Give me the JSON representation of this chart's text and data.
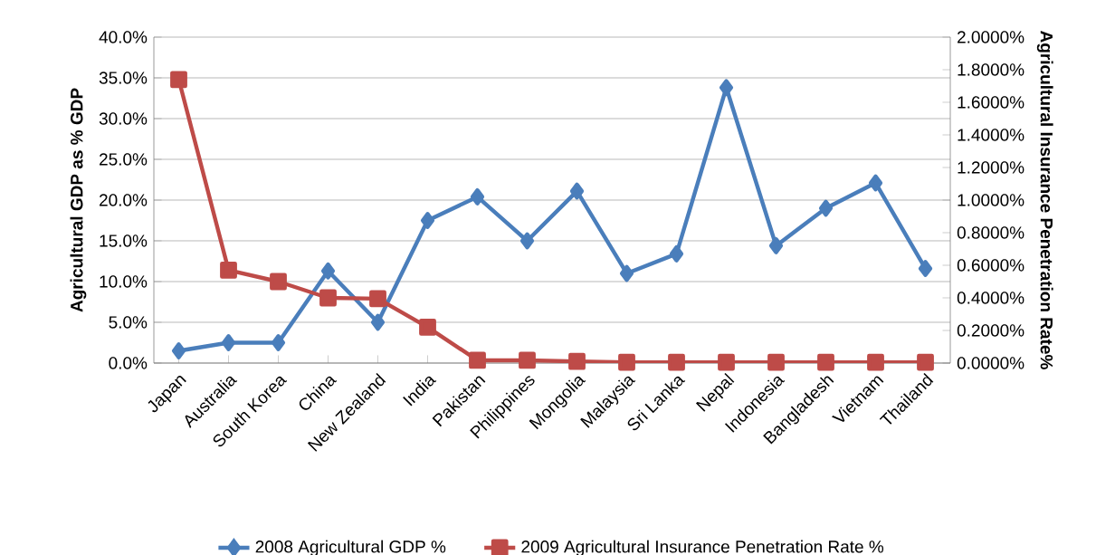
{
  "chart_data": {
    "type": "line",
    "categories": [
      "Japan",
      "Australia",
      "South Korea",
      "China",
      "New Zealand",
      "India",
      "Pakistan",
      "Philippines",
      "Mongolia",
      "Malaysia",
      "Sri Lanka",
      "Nepal",
      "Indonesia",
      "Bangladesh",
      "Vietnam",
      "Thailand"
    ],
    "series": [
      {
        "name": "2008 Agricultural GDP %",
        "color": "#4a7ebb",
        "marker": "diamond",
        "values": [
          1.5,
          2.5,
          2.5,
          11.3,
          5.0,
          17.5,
          20.4,
          15.0,
          21.1,
          11.0,
          13.4,
          33.8,
          14.4,
          19.0,
          22.1,
          11.6
        ]
      },
      {
        "name": "2009 Agricultural Insurance Penetration Rate %",
        "color": "#be4b48",
        "marker": "square",
        "axis": "y2",
        "values": [
          1.74,
          0.57,
          0.5,
          0.4,
          0.395,
          0.22,
          0.017,
          0.017,
          0.01,
          0.005,
          0.005,
          0.005,
          0.005,
          0.005,
          0.005,
          0.005
        ]
      }
    ],
    "ylabel": "Agricultural GDP as % GDP",
    "y2label": "Agricultural Insurance Penetration Rate%",
    "ylim": [
      0,
      40
    ],
    "yticks": [
      {
        "value": 0,
        "label": "0.0%"
      },
      {
        "value": 5,
        "label": "5.0%"
      },
      {
        "value": 10,
        "label": "10.0%"
      },
      {
        "value": 15,
        "label": "15.0%"
      },
      {
        "value": 20,
        "label": "20.0%"
      },
      {
        "value": 25,
        "label": "25.0%"
      },
      {
        "value": 30,
        "label": "30.0%"
      },
      {
        "value": 35,
        "label": "35.0%"
      },
      {
        "value": 40,
        "label": "40.0%"
      }
    ],
    "y2lim": [
      0,
      2
    ],
    "y2ticks": [
      {
        "value": 0,
        "label": "0.0000%"
      },
      {
        "value": 0.2,
        "label": "0.2000%"
      },
      {
        "value": 0.4,
        "label": "0.4000%"
      },
      {
        "value": 0.6,
        "label": "0.6000%"
      },
      {
        "value": 0.8,
        "label": "0.8000%"
      },
      {
        "value": 1.0,
        "label": "1.0000%"
      },
      {
        "value": 1.2,
        "label": "1.2000%"
      },
      {
        "value": 1.4,
        "label": "1.4000%"
      },
      {
        "value": 1.6,
        "label": "1.6000%"
      },
      {
        "value": 1.8,
        "label": "1.8000%"
      },
      {
        "value": 2.0,
        "label": "2.0000%"
      }
    ],
    "grid": "y",
    "legend": "bottom",
    "line_style": "solid"
  }
}
